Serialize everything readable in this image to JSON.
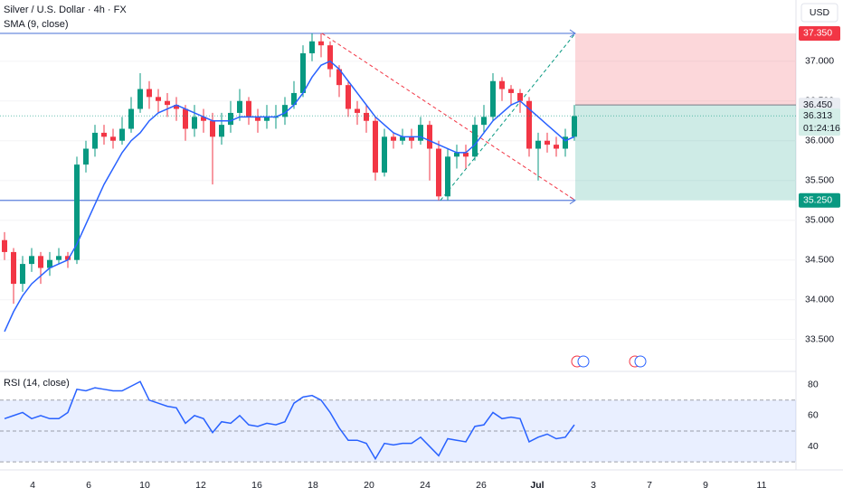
{
  "header": {
    "symbol": "Silver / U.S. Dollar · 4h · FX",
    "currency": "USD"
  },
  "chart_data": [
    {
      "type": "candlestick",
      "open": [
        34.75,
        34.6,
        34.2,
        34.45,
        34.55,
        34.4,
        34.5,
        34.55,
        34.5,
        35.7,
        35.9,
        36.1,
        36.05,
        36.0,
        36.15,
        36.4,
        36.65,
        36.55,
        36.5,
        36.45,
        36.4,
        36.15,
        36.3,
        36.25,
        36.05,
        36.2,
        36.35,
        36.5,
        36.3,
        36.25,
        36.3,
        36.3,
        36.45,
        36.6,
        37.1,
        37.25,
        37.2,
        36.9,
        36.7,
        36.4,
        36.35,
        36.25,
        35.6,
        36.05,
        36.0,
        36.05,
        36.0,
        36.2,
        35.9,
        35.3,
        35.8,
        35.85,
        35.8,
        36.2,
        36.3,
        36.75,
        36.65,
        36.6,
        36.5,
        35.9,
        36.0,
        35.95,
        35.9,
        36.05
      ],
      "high": [
        34.85,
        34.65,
        34.55,
        34.65,
        34.6,
        34.6,
        34.65,
        34.6,
        35.8,
        36.0,
        36.2,
        36.2,
        36.15,
        36.3,
        36.55,
        36.85,
        36.75,
        36.65,
        36.6,
        36.55,
        36.45,
        36.45,
        36.4,
        36.35,
        36.35,
        36.5,
        36.65,
        36.55,
        36.4,
        36.45,
        36.45,
        36.55,
        36.75,
        37.2,
        37.35,
        37.35,
        37.25,
        36.95,
        36.75,
        36.5,
        36.45,
        36.3,
        36.15,
        36.1,
        36.15,
        36.15,
        36.3,
        36.25,
        36.0,
        35.9,
        35.95,
        35.95,
        36.3,
        36.45,
        36.85,
        36.8,
        36.7,
        36.65,
        36.55,
        36.1,
        36.1,
        36.05,
        36.15,
        36.45
      ],
      "low": [
        34.5,
        33.95,
        34.1,
        34.35,
        34.2,
        34.3,
        34.45,
        34.4,
        34.45,
        35.6,
        35.8,
        35.95,
        35.9,
        35.95,
        36.1,
        36.35,
        36.4,
        36.35,
        36.3,
        36.25,
        36.0,
        36.05,
        36.1,
        35.45,
        35.95,
        36.1,
        36.25,
        36.2,
        36.1,
        36.15,
        36.15,
        36.2,
        36.4,
        36.55,
        37.0,
        37.05,
        36.8,
        36.55,
        36.3,
        36.2,
        36.1,
        35.5,
        35.55,
        35.9,
        35.95,
        35.9,
        35.95,
        35.5,
        35.25,
        35.25,
        35.65,
        35.65,
        35.75,
        36.1,
        36.25,
        36.5,
        36.45,
        36.35,
        35.8,
        35.5,
        35.85,
        35.8,
        35.8,
        36.0
      ],
      "close": [
        34.6,
        34.2,
        34.45,
        34.55,
        34.4,
        34.5,
        34.55,
        34.5,
        35.7,
        35.9,
        36.1,
        36.05,
        36.0,
        36.15,
        36.4,
        36.65,
        36.55,
        36.5,
        36.45,
        36.4,
        36.15,
        36.3,
        36.25,
        36.05,
        36.2,
        36.35,
        36.5,
        36.3,
        36.25,
        36.3,
        36.3,
        36.45,
        36.6,
        37.1,
        37.25,
        37.2,
        36.9,
        36.7,
        36.4,
        36.35,
        36.25,
        35.6,
        36.05,
        36.0,
        36.05,
        36.0,
        36.2,
        35.9,
        35.3,
        35.8,
        35.85,
        35.8,
        36.2,
        36.3,
        36.75,
        36.65,
        36.6,
        36.5,
        35.9,
        36.0,
        35.95,
        35.9,
        36.05,
        36.31
      ],
      "colors": {
        "up": "#089981",
        "down": "#f23645"
      },
      "sma": {
        "name": "SMA (9, close)",
        "color": "#2962ff",
        "values": [
          33.6,
          33.85,
          34.05,
          34.2,
          34.3,
          34.4,
          34.45,
          34.5,
          34.7,
          34.95,
          35.2,
          35.45,
          35.65,
          35.85,
          36.0,
          36.1,
          36.25,
          36.35,
          36.4,
          36.45,
          36.4,
          36.35,
          36.3,
          36.25,
          36.25,
          36.25,
          36.3,
          36.3,
          36.3,
          36.3,
          36.3,
          36.35,
          36.45,
          36.6,
          36.8,
          36.95,
          37.0,
          36.9,
          36.75,
          36.6,
          36.45,
          36.3,
          36.2,
          36.1,
          36.05,
          36.05,
          36.05,
          36.0,
          35.95,
          35.9,
          35.85,
          35.85,
          35.95,
          36.1,
          36.25,
          36.35,
          36.45,
          36.5,
          36.4,
          36.3,
          36.2,
          36.1,
          36.0,
          36.05
        ]
      },
      "ylim": [
        33.11,
        37.77
      ],
      "yticks": [
        {
          "value": 33.5,
          "label": "33.500"
        },
        {
          "value": 34.0,
          "label": "34.000"
        },
        {
          "value": 34.5,
          "label": "34.500"
        },
        {
          "value": 35.0,
          "label": "35.000"
        },
        {
          "value": 35.5,
          "label": "35.500"
        },
        {
          "value": 36.0,
          "label": "36.000"
        },
        {
          "value": 36.5,
          "label": "36.500"
        },
        {
          "value": 37.0,
          "label": "37.000"
        }
      ],
      "x_labels": [
        "4",
        "6",
        "10",
        "12",
        "16",
        "18",
        "20",
        "24",
        "26",
        "Jul",
        "3",
        "7",
        "9",
        "11"
      ],
      "position": {
        "stop": {
          "value": 37.35,
          "label": "37.350"
        },
        "entry": {
          "value": 36.45,
          "label": "36.450"
        },
        "target": {
          "value": 35.25,
          "label": "35.250"
        }
      },
      "last_price": 36.313,
      "countdown": "01:24:16"
    },
    {
      "type": "line",
      "title": "RSI (14, close)",
      "color": "#2962ff",
      "values": [
        58,
        60,
        62,
        58,
        60,
        58,
        58,
        62,
        77,
        76,
        78,
        77,
        76,
        76,
        79,
        82,
        70,
        68,
        66,
        65,
        55,
        60,
        58,
        49,
        56,
        55,
        60,
        54,
        53,
        55,
        54,
        56,
        68,
        72,
        73,
        70,
        62,
        52,
        44,
        44,
        42,
        32,
        42,
        41,
        42,
        42,
        46,
        40,
        34,
        45,
        44,
        43,
        53,
        54,
        62,
        58,
        59,
        58,
        43,
        46,
        48,
        45,
        46,
        54
      ],
      "ylim": [
        26,
        88
      ],
      "yticks": [
        40,
        60,
        80
      ],
      "bands": [
        30,
        50,
        70
      ]
    }
  ]
}
